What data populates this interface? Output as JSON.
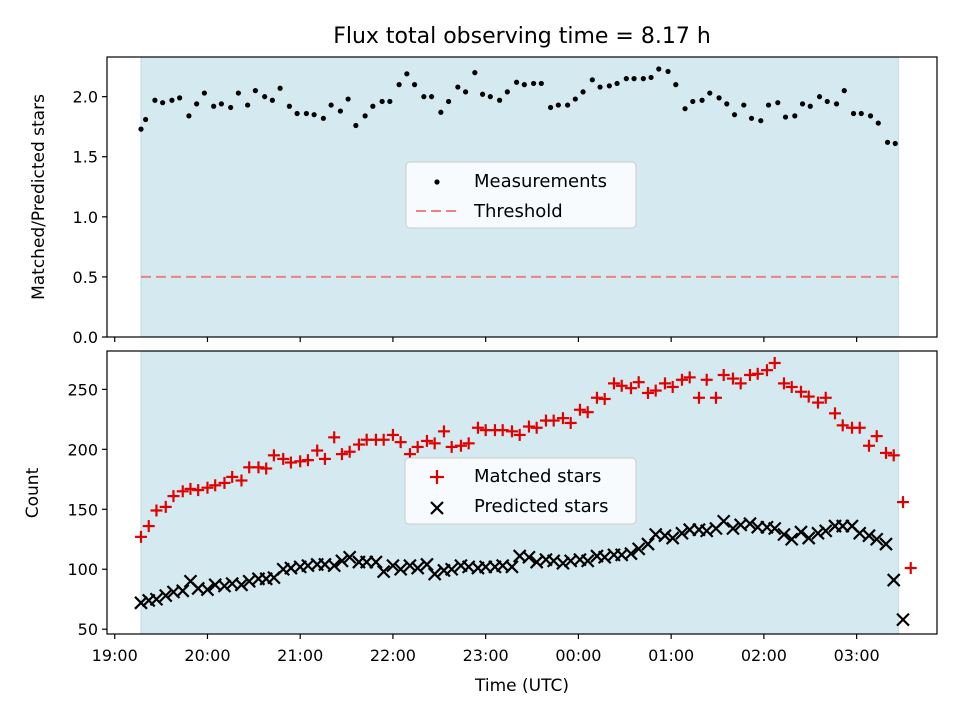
{
  "title": "Flux total observing time = 8.17 h",
  "colors": {
    "band": "#d4eaf0",
    "threshold": "#f08080",
    "matched": "#e00000",
    "predicted": "#000000",
    "measurement": "#000000"
  },
  "chart_data": [
    {
      "type": "scatter",
      "ylabel": "Matched/Predicted stars",
      "ylim": [
        0,
        2.33
      ],
      "yticks": [
        "0.0",
        "0.5",
        "1.0",
        "1.5",
        "2.0"
      ],
      "ytick_values": [
        0,
        0.5,
        1.0,
        1.5,
        2.0
      ],
      "legend_placement": "center",
      "legend": [
        "Measurements",
        "Threshold"
      ],
      "threshold": 0.5,
      "observing_window": [
        "19:17",
        "03:27"
      ],
      "series": [
        {
          "name": "Measurements",
          "x": [
            "19:17",
            "19:20",
            "19:26",
            "19:31",
            "19:37",
            "19:42",
            "19:48",
            "19:53",
            "19:58",
            "20:04",
            "20:09",
            "20:15",
            "20:20",
            "20:26",
            "20:31",
            "20:37",
            "20:42",
            "20:47",
            "20:53",
            "20:58",
            "21:04",
            "21:09",
            "21:15",
            "21:20",
            "21:26",
            "21:31",
            "21:36",
            "21:42",
            "21:47",
            "21:53",
            "21:58",
            "22:04",
            "22:09",
            "22:14",
            "22:20",
            "22:25",
            "22:31",
            "22:36",
            "22:42",
            "22:47",
            "22:53",
            "22:58",
            "23:03",
            "23:09",
            "23:14",
            "23:20",
            "23:25",
            "23:31",
            "23:36",
            "23:42",
            "23:47",
            "23:53",
            "23:58",
            "00:03",
            "00:09",
            "00:14",
            "00:20",
            "00:25",
            "00:31",
            "00:36",
            "00:42",
            "00:47",
            "00:52",
            "00:58",
            "01:03",
            "01:09",
            "01:14",
            "01:20",
            "01:25",
            "01:31",
            "01:36",
            "01:41",
            "01:47",
            "01:52",
            "01:58",
            "02:03",
            "02:09",
            "02:14",
            "02:20",
            "02:25",
            "02:30",
            "02:36",
            "02:41",
            "02:47",
            "02:52",
            "02:58",
            "03:03",
            "03:09",
            "03:14",
            "03:20",
            "03:25"
          ],
          "y": [
            1.73,
            1.81,
            1.97,
            1.95,
            1.97,
            1.99,
            1.84,
            1.94,
            2.03,
            1.92,
            1.94,
            1.91,
            2.03,
            1.93,
            2.05,
            2.0,
            1.97,
            2.07,
            1.92,
            1.86,
            1.86,
            1.85,
            1.82,
            1.93,
            1.88,
            1.98,
            1.76,
            1.84,
            1.92,
            1.96,
            1.96,
            2.1,
            2.19,
            2.1,
            2.0,
            2.0,
            1.87,
            1.96,
            2.08,
            2.04,
            2.2,
            2.02,
            2.0,
            1.97,
            2.04,
            2.12,
            2.1,
            2.11,
            2.11,
            1.91,
            1.93,
            1.93,
            1.98,
            2.04,
            2.14,
            2.08,
            2.09,
            2.11,
            2.15,
            2.15,
            2.15,
            2.16,
            2.23,
            2.21,
            2.1,
            1.9,
            1.96,
            1.97,
            2.03,
            1.99,
            1.94,
            1.85,
            1.93,
            1.82,
            1.8,
            1.93,
            1.95,
            1.83,
            1.84,
            1.94,
            1.92,
            2.0,
            1.96,
            1.94,
            2.05,
            1.86,
            1.86,
            1.84,
            1.78,
            1.62,
            1.61
          ]
        }
      ]
    },
    {
      "type": "scatter",
      "xlabel": "Time (UTC)",
      "ylabel": "Count",
      "ylim": [
        46,
        282
      ],
      "yticks": [
        "50",
        "100",
        "150",
        "200",
        "250"
      ],
      "ytick_values": [
        50,
        100,
        150,
        200,
        250
      ],
      "xticks": [
        "19:00",
        "20:00",
        "21:00",
        "22:00",
        "23:00",
        "00:00",
        "01:00",
        "02:00",
        "03:00"
      ],
      "xlim": [
        "18:55",
        "03:52"
      ],
      "legend_placement": "center",
      "legend": [
        "Matched stars",
        "Predicted stars"
      ],
      "series": [
        {
          "name": "Matched stars",
          "x": [
            "19:17",
            "19:22",
            "19:27",
            "19:33",
            "19:38",
            "19:44",
            "19:49",
            "19:54",
            "20:00",
            "20:05",
            "20:11",
            "20:16",
            "20:22",
            "20:27",
            "20:33",
            "20:38",
            "20:43",
            "20:49",
            "20:54",
            "21:00",
            "21:05",
            "21:11",
            "21:16",
            "21:22",
            "21:27",
            "21:32",
            "21:38",
            "21:43",
            "21:49",
            "21:54",
            "22:00",
            "22:05",
            "22:11",
            "22:16",
            "22:22",
            "22:27",
            "22:33",
            "22:38",
            "22:44",
            "22:49",
            "22:55",
            "23:00",
            "23:06",
            "23:11",
            "23:17",
            "23:22",
            "23:28",
            "23:33",
            "23:39",
            "23:44",
            "23:50",
            "23:55",
            "00:01",
            "00:06",
            "00:12",
            "00:17",
            "00:23",
            "00:28",
            "00:34",
            "00:39",
            "00:45",
            "00:50",
            "00:56",
            "01:01",
            "01:07",
            "01:12",
            "01:18",
            "01:23",
            "01:29",
            "01:34",
            "01:40",
            "01:45",
            "01:51",
            "01:56",
            "02:02",
            "02:07",
            "02:13",
            "02:18",
            "02:24",
            "02:29",
            "02:35",
            "02:40",
            "02:46",
            "02:51",
            "02:57",
            "03:02",
            "03:08",
            "03:13",
            "03:19",
            "03:24",
            "03:30"
          ],
          "y": [
            127,
            136,
            149,
            152,
            161,
            165,
            167,
            166,
            168,
            170,
            172,
            177,
            174,
            185,
            185,
            184,
            195,
            192,
            189,
            190,
            191,
            199,
            192,
            210,
            196,
            198,
            204,
            208,
            208,
            208,
            212,
            206,
            196,
            202,
            207,
            205,
            215,
            202,
            203,
            205,
            218,
            216,
            216,
            216,
            215,
            212,
            219,
            218,
            224,
            224,
            226,
            222,
            233,
            231,
            243,
            242,
            255,
            253,
            251,
            256,
            247,
            249,
            255,
            252,
            258,
            260,
            243,
            258,
            243,
            262,
            259,
            255,
            262,
            263,
            266,
            272,
            255,
            252,
            248,
            244,
            239,
            243,
            230,
            220,
            218,
            218,
            203,
            211,
            197,
            195,
            156
          ]
        },
        {
          "name": "Predicted stars",
          "x": [
            "19:17",
            "19:22",
            "19:27",
            "19:33",
            "19:38",
            "19:44",
            "19:49",
            "19:54",
            "20:00",
            "20:05",
            "20:11",
            "20:16",
            "20:22",
            "20:27",
            "20:33",
            "20:38",
            "20:43",
            "20:49",
            "20:54",
            "21:00",
            "21:05",
            "21:11",
            "21:16",
            "21:22",
            "21:27",
            "21:32",
            "21:38",
            "21:43",
            "21:49",
            "21:54",
            "22:00",
            "22:05",
            "22:11",
            "22:16",
            "22:22",
            "22:27",
            "22:33",
            "22:38",
            "22:44",
            "22:49",
            "22:55",
            "23:00",
            "23:06",
            "23:11",
            "23:17",
            "23:22",
            "23:28",
            "23:33",
            "23:39",
            "23:44",
            "23:50",
            "23:55",
            "00:01",
            "00:06",
            "00:12",
            "00:17",
            "00:23",
            "00:28",
            "00:34",
            "00:39",
            "00:45",
            "00:50",
            "00:56",
            "01:01",
            "01:07",
            "01:12",
            "01:18",
            "01:23",
            "01:29",
            "01:34",
            "01:40",
            "01:45",
            "01:51",
            "01:56",
            "02:02",
            "02:07",
            "02:13",
            "02:18",
            "02:24",
            "02:29",
            "02:35",
            "02:40",
            "02:46",
            "02:51",
            "02:57",
            "03:02",
            "03:08",
            "03:13",
            "03:19",
            "03:24",
            "03:30"
          ],
          "y": [
            72,
            74,
            75,
            78,
            81,
            82,
            90,
            84,
            83,
            87,
            86,
            88,
            87,
            90,
            92,
            92,
            93,
            100,
            101,
            102,
            103,
            104,
            104,
            103,
            107,
            110,
            106,
            106,
            106,
            98,
            103,
            100,
            103,
            101,
            104,
            96,
            99,
            100,
            103,
            102,
            101,
            102,
            102,
            103,
            102,
            111,
            110,
            106,
            108,
            107,
            105,
            107,
            108,
            107,
            111,
            110,
            112,
            112,
            113,
            117,
            121,
            129,
            128,
            126,
            130,
            133,
            133,
            132,
            134,
            140,
            134,
            137,
            138,
            135,
            135,
            134,
            129,
            125,
            131,
            126,
            130,
            132,
            136,
            136,
            136,
            130,
            128,
            125,
            121,
            91,
            58
          ]
        },
        {
          "name": "Matched stars (tail)",
          "x": [
            "03:35"
          ],
          "y": [
            101
          ]
        }
      ]
    }
  ]
}
